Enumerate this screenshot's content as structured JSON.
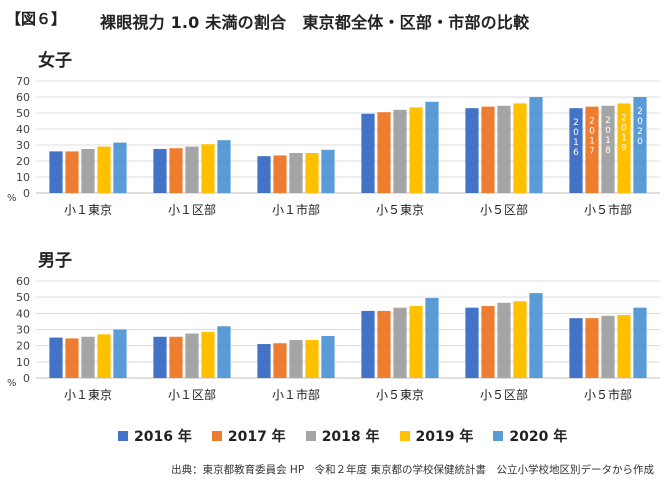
{
  "figure_label": "【図６】",
  "title": "裸眼視力 1.0 未満の割合　東京都全体・区部・市部の比較",
  "source": "出典：東京都教育委員会 HP　令和２年度 東京都の学校保健統計書　公立小学校地区別データから作成",
  "legend": [
    {
      "label": "2016 年",
      "color": "#4472c4"
    },
    {
      "label": "2017 年",
      "color": "#ed7d31"
    },
    {
      "label": "2018 年",
      "color": "#a5a5a5"
    },
    {
      "label": "2019 年",
      "color": "#ffc000"
    },
    {
      "label": "2020 年",
      "color": "#5b9bd5"
    }
  ],
  "chart_data": [
    {
      "type": "bar",
      "title": "女子",
      "ylabel": "%",
      "ylim": [
        0,
        70
      ],
      "yticks": [
        "0",
        "10",
        "20",
        "30",
        "40",
        "50",
        "60",
        "70"
      ],
      "categories": [
        "小１東京",
        "小１区部",
        "小１市部",
        "小５東京",
        "小５区部",
        "小５市部"
      ],
      "series": [
        {
          "name": "2016 年",
          "values": [
            26,
            27.5,
            23,
            49.5,
            53,
            53
          ]
        },
        {
          "name": "2017 年",
          "values": [
            26,
            28,
            23.5,
            50.5,
            54,
            54
          ]
        },
        {
          "name": "2018 年",
          "values": [
            27.5,
            29,
            25,
            52,
            54.5,
            54.5
          ]
        },
        {
          "name": "2019 年",
          "values": [
            29,
            30.5,
            25,
            53.5,
            56,
            56
          ]
        },
        {
          "name": "2020 年",
          "values": [
            31.5,
            33,
            27,
            57,
            60,
            60
          ]
        }
      ],
      "bar_year_labels": [
        "2016",
        "2017",
        "2018",
        "2019",
        "2020"
      ]
    },
    {
      "type": "bar",
      "title": "男子",
      "ylabel": "%",
      "ylim": [
        0,
        60
      ],
      "yticks": [
        "0",
        "10",
        "20",
        "30",
        "40",
        "50",
        "60"
      ],
      "categories": [
        "小１東京",
        "小１区部",
        "小１市部",
        "小５東京",
        "小５区部",
        "小５市部"
      ],
      "series": [
        {
          "name": "2016 年",
          "values": [
            25,
            25.5,
            21,
            41.5,
            43.5,
            37
          ]
        },
        {
          "name": "2017 年",
          "values": [
            24.5,
            25.5,
            21.5,
            41.5,
            44.5,
            37
          ]
        },
        {
          "name": "2018 年",
          "values": [
            25.5,
            27.5,
            23.5,
            43.5,
            46.5,
            38.5
          ]
        },
        {
          "name": "2019 年",
          "values": [
            27,
            28.5,
            23.5,
            44.5,
            47.5,
            39
          ]
        },
        {
          "name": "2020 年",
          "values": [
            30,
            32,
            26,
            49.5,
            52.5,
            43.5
          ]
        }
      ]
    }
  ]
}
